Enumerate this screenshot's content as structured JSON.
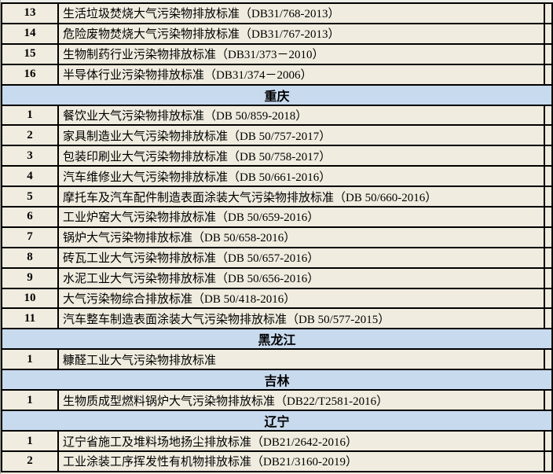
{
  "table": {
    "colors": {
      "row_background": "#f0ecdf",
      "section_header_background": "#c8daee",
      "border": "#000000",
      "top_edge": "#ebebe7",
      "left_edge": "#a6a69e"
    },
    "sections": [
      {
        "header": null,
        "rows": [
          {
            "num": "13",
            "title": "生活垃圾焚烧大气污染物排放标准（DB31/768-2013）"
          },
          {
            "num": "14",
            "title": "危险废物焚烧大气污染物排放标准（DB31/767-2013）"
          },
          {
            "num": "15",
            "title": "生物制药行业污染物排放标准（DB31/373－2010）"
          },
          {
            "num": "16",
            "title": "半导体行业污染物排放标准（DB31/374－2006）"
          }
        ]
      },
      {
        "header": "重庆",
        "rows": [
          {
            "num": "1",
            "title": "餐饮业大气污染物排放标准（DB 50/859-2018）"
          },
          {
            "num": "2",
            "title": "家具制造业大气污染物排放标准（DB 50/757-2017）"
          },
          {
            "num": "3",
            "title": "包装印刷业大气污染物排放标准（DB 50/758-2017）"
          },
          {
            "num": "4",
            "title": "汽车维修业大气污染物排放标准（DB 50/661-2016）"
          },
          {
            "num": "5",
            "title": "摩托车及汽车配件制造表面涂装大气污染物排放标准（DB 50/660-2016）"
          },
          {
            "num": "6",
            "title": "工业炉窑大气污染物排放标准（DB 50/659-2016）"
          },
          {
            "num": "7",
            "title": "锅炉大气污染物排放标准（DB 50/658-2016）"
          },
          {
            "num": "8",
            "title": "砖瓦工业大气污染物排放标准（DB 50/657-2016）"
          },
          {
            "num": "9",
            "title": "水泥工业大气污染物排放标准（DB 50/656-2016）"
          },
          {
            "num": "10",
            "title": "大气污染物综合排放标准（DB 50/418-2016）"
          },
          {
            "num": "11",
            "title": "汽车整车制造表面涂装大气污染物排放标准（DB 50/577-2015）"
          }
        ]
      },
      {
        "header": "黑龙江",
        "rows": [
          {
            "num": "1",
            "title": "糠醛工业大气污染物排放标准"
          }
        ]
      },
      {
        "header": "吉林",
        "rows": [
          {
            "num": "1",
            "title": "生物质成型燃料锅炉大气污染物排放标准（DB22/T2581-2016）"
          }
        ]
      },
      {
        "header": "辽宁",
        "rows": [
          {
            "num": "1",
            "title": "辽宁省施工及堆料场地扬尘排放标准（DB21/2642-2016）"
          },
          {
            "num": "2",
            "title": "工业涂装工序挥发性有机物排放标准（DB21/3160-2019）"
          }
        ]
      }
    ]
  }
}
